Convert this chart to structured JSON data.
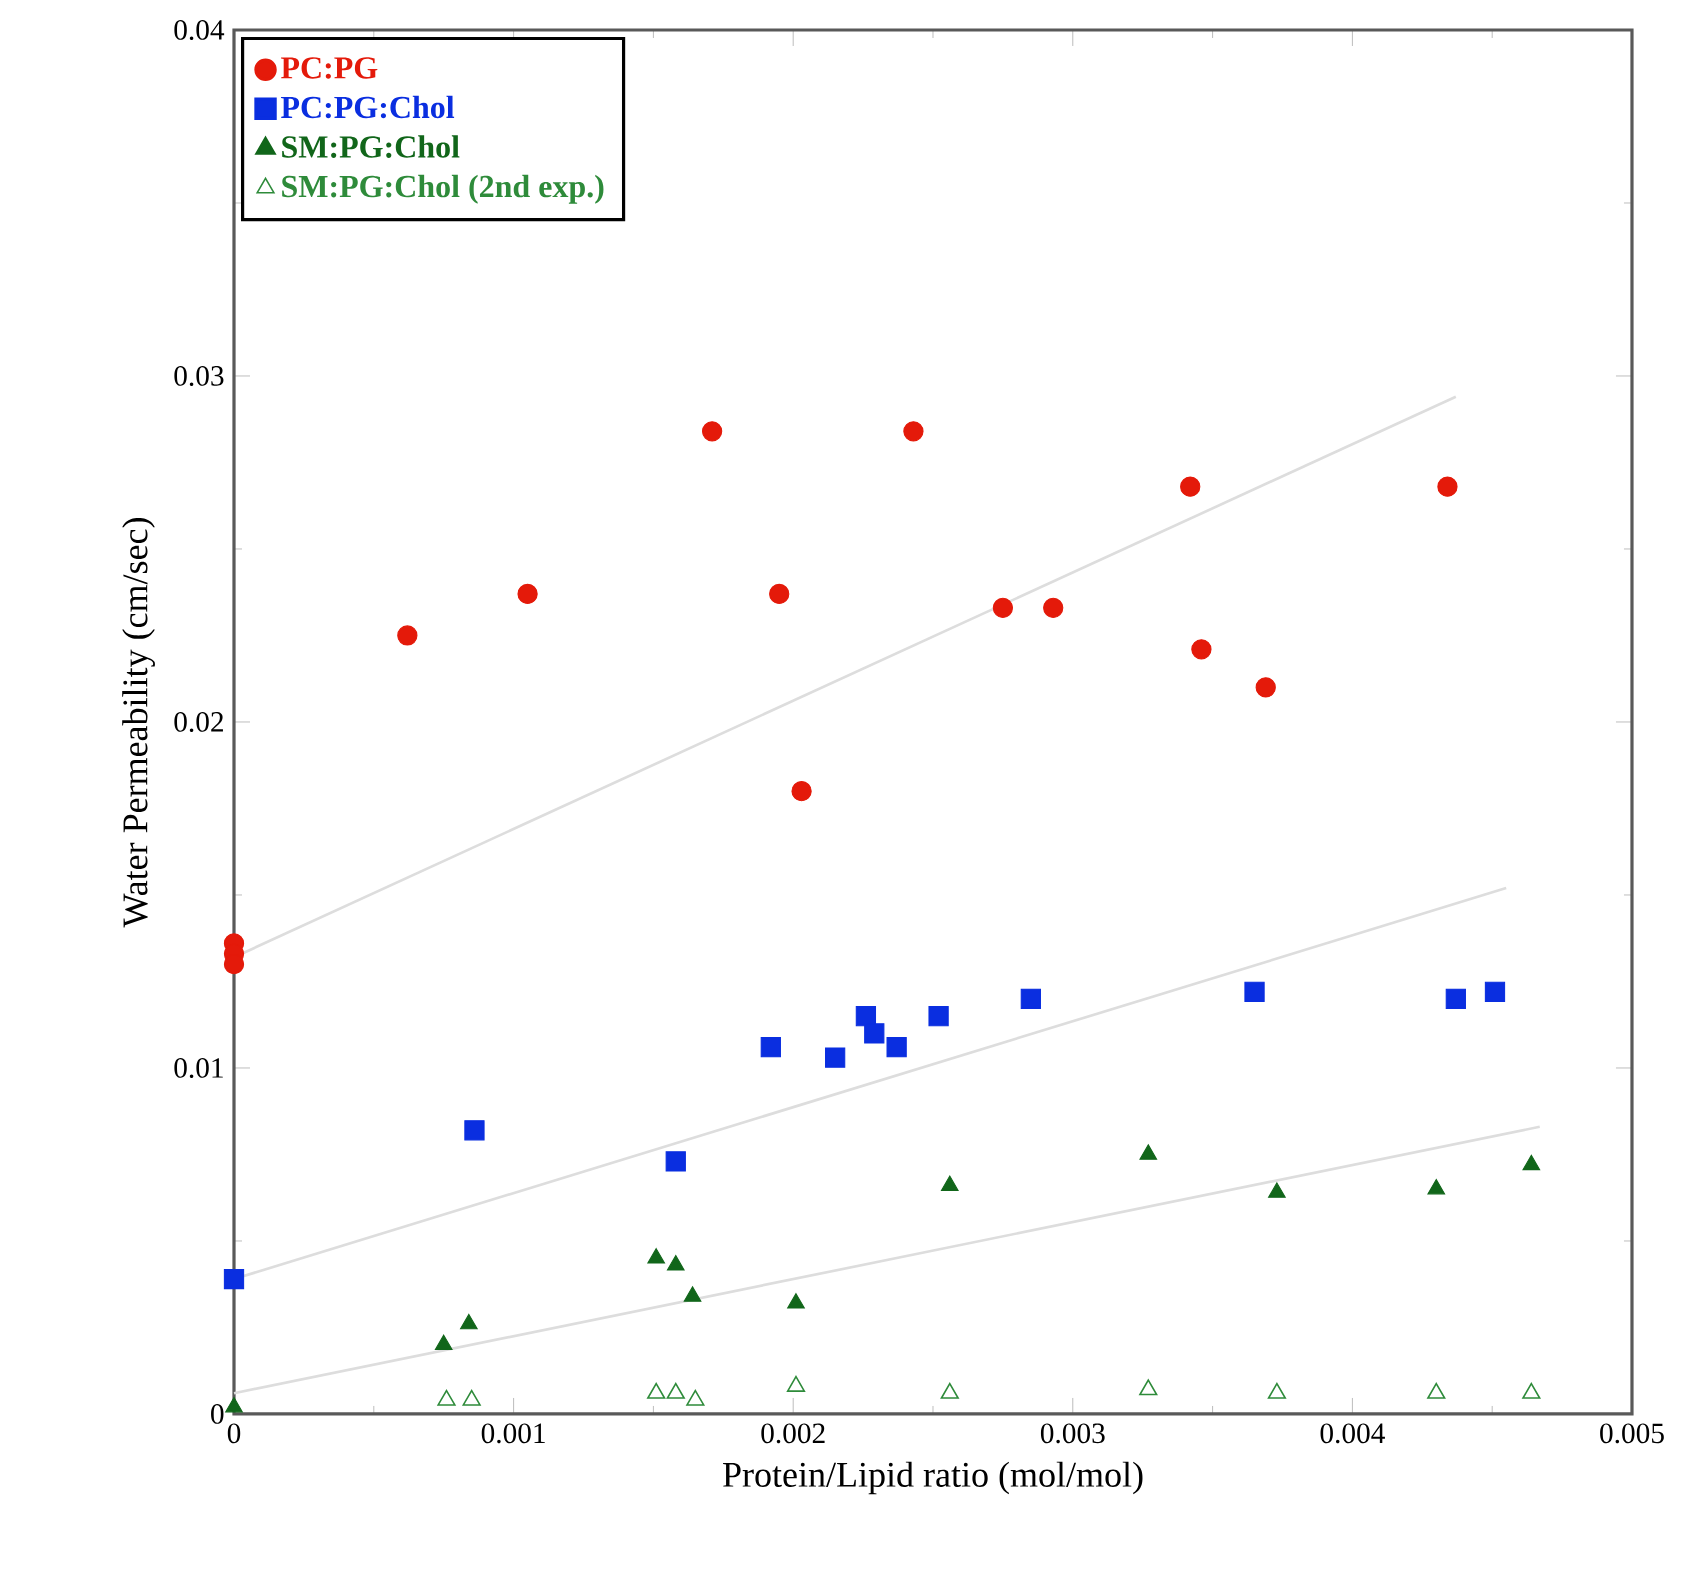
{
  "chart_data": {
    "type": "scatter",
    "xlabel": "Protein/Lipid ratio  (mol/mol)",
    "ylabel": "Water Permeability  (cm/sec)",
    "xlim": [
      0,
      0.005
    ],
    "ylim": [
      0,
      0.04
    ],
    "xticks": [
      0,
      0.001,
      0.002,
      0.003,
      0.004,
      0.005
    ],
    "yticks": [
      0,
      0.01,
      0.02,
      0.03,
      0.04
    ],
    "legend": "top left",
    "series": [
      {
        "name": "PC:PG",
        "color": "#e41a0a",
        "marker": "circle",
        "x": [
          0,
          0,
          0,
          0.00062,
          0.00105,
          0.00171,
          0.00195,
          0.00203,
          0.00243,
          0.00275,
          0.00293,
          0.00342,
          0.00346,
          0.00369,
          0.00434
        ],
        "values": [
          0.0136,
          0.0133,
          0.013,
          0.0225,
          0.0237,
          0.0284,
          0.0237,
          0.018,
          0.0284,
          0.0233,
          0.0233,
          0.0268,
          0.0221,
          0.021,
          0.0268
        ]
      },
      {
        "name": "PC:PG:Chol",
        "color": "#0a2ee0",
        "marker": "square",
        "x": [
          0,
          0.00086,
          0.00158,
          0.00192,
          0.00215,
          0.00226,
          0.00229,
          0.00237,
          0.00252,
          0.00285,
          0.00365,
          0.00437,
          0.00451
        ],
        "values": [
          0.0039,
          0.0082,
          0.0073,
          0.0106,
          0.0103,
          0.0115,
          0.011,
          0.0106,
          0.0115,
          0.012,
          0.0122,
          0.012,
          0.0122
        ]
      },
      {
        "name": "SM:PG:Chol",
        "color": "#11661a",
        "marker": "triangle",
        "x": [
          0,
          0.00075,
          0.00084,
          0.00151,
          0.00158,
          0.00164,
          0.00201,
          0.00256,
          0.00327,
          0.00373,
          0.0043,
          0.00464
        ],
        "values": [
          0.0002,
          0.002,
          0.0026,
          0.0045,
          0.0043,
          0.0034,
          0.0032,
          0.0066,
          0.0075,
          0.0064,
          0.0065,
          0.0072
        ]
      },
      {
        "name": "SM:PG:Chol (2nd exp.)",
        "color": "#2e8b3a",
        "marker": "triangle-open",
        "x": [
          0.00076,
          0.00085,
          0.00151,
          0.00158,
          0.00165,
          0.00201,
          0.00256,
          0.00327,
          0.00373,
          0.0043,
          0.00464
        ],
        "values": [
          0.0004,
          0.0004,
          0.0006,
          0.0006,
          0.0004,
          0.0008,
          0.0006,
          0.0007,
          0.0006,
          0.0006,
          0.0006
        ]
      },
      {
        "type": "line",
        "color": "#dddddd",
        "marker": "none",
        "x": [
          0,
          0.00437
        ],
        "values": [
          0.0132,
          0.0294
        ]
      },
      {
        "type": "line",
        "color": "#dddddd",
        "marker": "none",
        "x": [
          0,
          0.00455
        ],
        "values": [
          0.0039,
          0.0152
        ]
      },
      {
        "type": "line",
        "color": "#dddddd",
        "marker": "none",
        "x": [
          0,
          0.00467
        ],
        "values": [
          0.0006,
          0.0083
        ]
      }
    ]
  }
}
